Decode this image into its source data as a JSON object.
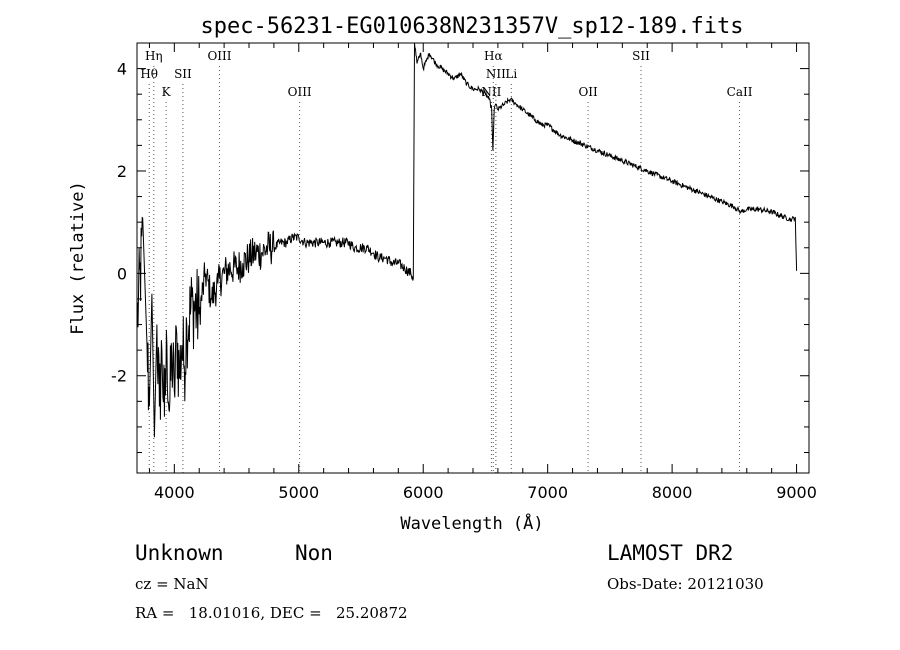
{
  "chart_data": {
    "type": "line",
    "title": "spec-56231-EG010638N231357V_sp12-189.fits",
    "xlabel": "Wavelength (Å)",
    "ylabel": "Flux (relative)",
    "xlim": [
      3700,
      9100
    ],
    "ylim": [
      -3.9,
      4.5
    ],
    "xticks": [
      4000,
      5000,
      6000,
      7000,
      8000,
      9000
    ],
    "yticks": [
      -2,
      0,
      2,
      4
    ],
    "grid": false,
    "series": [
      {
        "x": [
          3700,
          3750,
          3780,
          3800,
          3820,
          3840,
          3860,
          3880,
          3900,
          3920,
          3940,
          3960,
          3980,
          4000,
          4020,
          4040,
          4060,
          4080,
          4100,
          4150,
          4200,
          4250,
          4300,
          4350,
          4400,
          4450,
          4500,
          4550,
          4600,
          4650,
          4700,
          4750,
          4800,
          4850,
          4900,
          4950,
          5000,
          5050,
          5100,
          5150,
          5200,
          5250,
          5300,
          5350,
          5400,
          5450,
          5500,
          5550,
          5600,
          5650,
          5700,
          5750,
          5800,
          5850,
          5900,
          5920,
          5930,
          5950,
          5980,
          6000,
          6050,
          6100,
          6150,
          6200,
          6250,
          6300,
          6350,
          6400,
          6450,
          6500,
          6530,
          6550,
          6560,
          6564,
          6570,
          6580,
          6600,
          6650,
          6700,
          6750,
          6800,
          6850,
          6900,
          6950,
          7000,
          7100,
          7200,
          7300,
          7400,
          7500,
          7600,
          7700,
          7800,
          7900,
          8000,
          8100,
          8200,
          8300,
          8400,
          8500,
          8550,
          8600,
          8700,
          8800,
          8900,
          8960,
          8990,
          9000
        ],
        "y": [
          -1.0,
          0.8,
          -1.4,
          -2.6,
          -0.4,
          -3.2,
          -1.0,
          -2.6,
          -1.5,
          -2.8,
          -1.4,
          -2.7,
          -1.6,
          -2.3,
          -1.2,
          -2.0,
          -1.4,
          -1.8,
          -1.0,
          -0.6,
          -0.8,
          0.0,
          -0.5,
          -0.2,
          0.0,
          0.1,
          0.1,
          0.2,
          0.3,
          0.4,
          0.4,
          0.5,
          0.5,
          0.6,
          0.6,
          0.7,
          0.7,
          0.6,
          0.6,
          0.6,
          0.6,
          0.6,
          0.6,
          0.6,
          0.6,
          0.5,
          0.5,
          0.5,
          0.4,
          0.3,
          0.3,
          0.2,
          0.2,
          0.1,
          0.0,
          -0.1,
          4.5,
          4.1,
          4.3,
          4.0,
          4.3,
          4.1,
          4.0,
          3.9,
          3.8,
          3.9,
          3.7,
          3.6,
          3.6,
          3.5,
          3.4,
          3.2,
          2.4,
          2.7,
          3.2,
          3.3,
          3.2,
          3.3,
          3.4,
          3.3,
          3.2,
          3.1,
          3.0,
          2.9,
          2.9,
          2.7,
          2.6,
          2.5,
          2.4,
          2.3,
          2.2,
          2.1,
          2.0,
          1.9,
          1.8,
          1.7,
          1.6,
          1.5,
          1.4,
          1.3,
          1.2,
          1.25,
          1.25,
          1.2,
          1.1,
          1.05,
          1.1,
          0.05
        ]
      }
    ],
    "annotations": [
      {
        "label": "Hη",
        "x": 3835,
        "row": 1
      },
      {
        "label": "Hθ",
        "x": 3798,
        "row": 2
      },
      {
        "label": "K",
        "x": 3934,
        "row": 3
      },
      {
        "label": "SII",
        "x": 4069,
        "row": 2
      },
      {
        "label": "OIII",
        "x": 4363,
        "row": 1
      },
      {
        "label": "OIII",
        "x": 5007,
        "row": 3
      },
      {
        "label": "Hα",
        "x": 6563,
        "row": 1
      },
      {
        "label": "NII",
        "x": 6584,
        "row": 2
      },
      {
        "label": "Li",
        "x": 6708,
        "row": 2
      },
      {
        "label": "NII",
        "x": 6548,
        "row": 3
      },
      {
        "label": "OII",
        "x": 7325,
        "row": 3
      },
      {
        "label": "SII",
        "x": 7750,
        "row": 1
      },
      {
        "label": "CaII",
        "x": 8542,
        "row": 3
      }
    ]
  },
  "info": {
    "class_label": "Unknown",
    "subclass_label": "Non",
    "survey": "LAMOST DR2",
    "redshift": "cz = NaN",
    "obs_date": "Obs-Date: 20121030",
    "coords": "RA =   18.01016, DEC =   25.20872"
  }
}
